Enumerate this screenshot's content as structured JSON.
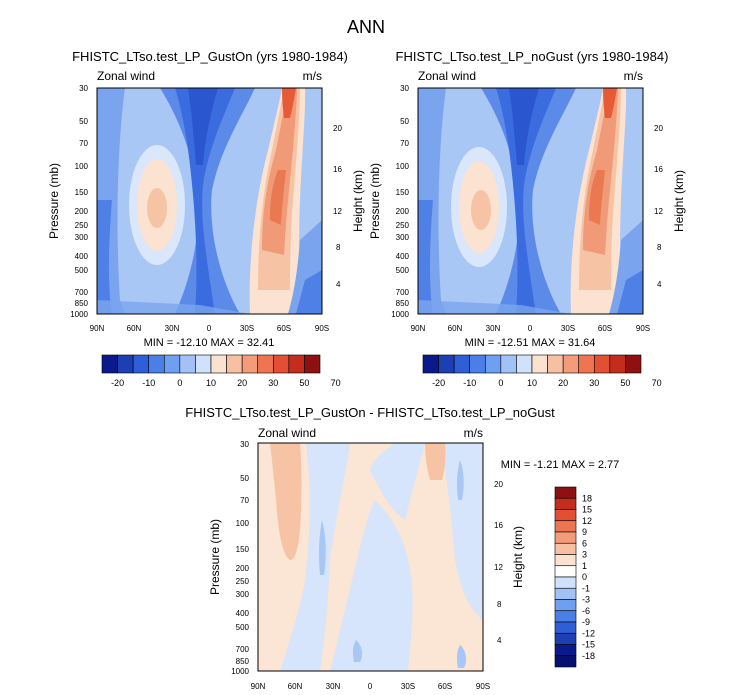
{
  "figure": {
    "title": "ANN"
  },
  "chart_data": [
    {
      "type": "heatmap",
      "title": "FHISTC_LTso.test_LP_GustOn (yrs 1980-1984)",
      "left_label": "Zonal wind",
      "right_label": "m/s",
      "ylabel": "Pressure (mb)",
      "y2label": "Height (km)",
      "x_ticks": [
        "90N",
        "60N",
        "30N",
        "0",
        "30S",
        "60S",
        "90S"
      ],
      "y_ticks": [
        "30",
        "50",
        "70",
        "100",
        "150",
        "200",
        "250",
        "300",
        "400",
        "500",
        "700",
        "850",
        "1000"
      ],
      "y2_ticks": [
        "20",
        "16",
        "12",
        "8",
        "4"
      ],
      "stats": "MIN = -12.10  MAX = 32.41",
      "min": -12.1,
      "max": 32.41,
      "ylim": [
        1000,
        30
      ],
      "xlim": [
        90,
        -90
      ],
      "colorbar": {
        "levels": [
          "-20",
          "-10",
          "0",
          "10",
          "20",
          "30",
          "50",
          "70"
        ],
        "colors": [
          "#0a1a8c",
          "#1d3fb4",
          "#2e5fd9",
          "#4a7fe8",
          "#6e9ff0",
          "#a2c2f7",
          "#d0e2fb",
          "#fbe1cf",
          "#f8c0a2",
          "#f49c79",
          "#ef7552",
          "#e34f33",
          "#c42c1d",
          "#8e1010"
        ]
      }
    },
    {
      "type": "heatmap",
      "title": "FHISTC_LTso.test_LP_noGust (yrs 1980-1984)",
      "left_label": "Zonal wind",
      "right_label": "m/s",
      "ylabel": "Pressure (mb)",
      "y2label": "Height (km)",
      "x_ticks": [
        "90N",
        "60N",
        "30N",
        "0",
        "30S",
        "60S",
        "90S"
      ],
      "y_ticks": [
        "30",
        "50",
        "70",
        "100",
        "150",
        "200",
        "250",
        "300",
        "400",
        "500",
        "700",
        "850",
        "1000"
      ],
      "y2_ticks": [
        "20",
        "16",
        "12",
        "8",
        "4"
      ],
      "stats": "MIN = -12.51  MAX =  31.64",
      "min": -12.51,
      "max": 31.64,
      "ylim": [
        1000,
        30
      ],
      "xlim": [
        90,
        -90
      ],
      "colorbar": {
        "levels": [
          "-20",
          "-10",
          "0",
          "10",
          "20",
          "30",
          "50",
          "70"
        ],
        "colors": [
          "#0a1a8c",
          "#1d3fb4",
          "#2e5fd9",
          "#4a7fe8",
          "#6e9ff0",
          "#a2c2f7",
          "#d0e2fb",
          "#fbe1cf",
          "#f8c0a2",
          "#f49c79",
          "#ef7552",
          "#e34f33",
          "#c42c1d",
          "#8e1010"
        ]
      }
    },
    {
      "type": "heatmap",
      "title": "FHISTC_LTso.test_LP_GustOn - FHISTC_LTso.test_LP_noGust",
      "left_label": "Zonal wind",
      "right_label": "m/s",
      "ylabel": "Pressure (mb)",
      "y2label": "Height (km)",
      "x_ticks": [
        "90N",
        "60N",
        "30N",
        "0",
        "30S",
        "60S",
        "90S"
      ],
      "y_ticks": [
        "30",
        "50",
        "70",
        "100",
        "150",
        "200",
        "250",
        "300",
        "400",
        "500",
        "700",
        "850",
        "1000"
      ],
      "y2_ticks": [
        "20",
        "16",
        "12",
        "8",
        "4"
      ],
      "stats": "MIN =  -1.21  MAX =   2.77",
      "min": -1.21,
      "max": 2.77,
      "ylim": [
        1000,
        30
      ],
      "xlim": [
        90,
        -90
      ],
      "colorbar": {
        "levels": [
          "18",
          "15",
          "12",
          "9",
          "6",
          "3",
          "1",
          "0",
          "-1",
          "-3",
          "-6",
          "-9",
          "-12",
          "-15",
          "-18"
        ],
        "colors": [
          "#8e1010",
          "#c42c1d",
          "#e34f33",
          "#ef7552",
          "#f49c79",
          "#f8c0a2",
          "#fbe1cf",
          "#ffffff",
          "#d0e2fb",
          "#a2c2f7",
          "#6e9ff0",
          "#4a7fe8",
          "#2e5fd9",
          "#1d3fb4",
          "#0a1a8c",
          "#061070"
        ]
      }
    }
  ]
}
